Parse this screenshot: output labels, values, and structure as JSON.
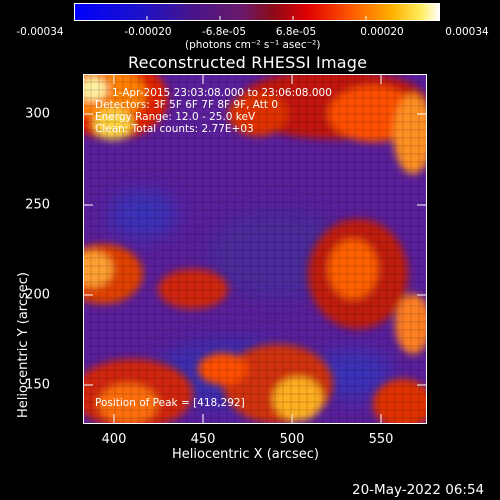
{
  "colorbar": {
    "ticks": [
      "-0.00034",
      "-0.00020",
      "-6.8e-05",
      "6.8e-05",
      "0.00020",
      "0.00034"
    ],
    "units": "(photons cm⁻² s⁻¹ asec⁻²)",
    "min": -0.00034,
    "max": 0.00034
  },
  "title": "Reconstructed RHESSI Image",
  "info": {
    "time": "1-Apr-2015 23:03:08.000 to 23:06:08.000",
    "detectors": "Detectors: 3F 5F 6F 7F 8F 9F, Att 0",
    "energy": "Energy Range: 12.0 - 25.0 keV",
    "clean": "Clean: Total counts: 2.77E+03",
    "peak": "Position of Peak = [418,292]"
  },
  "footer": "20-May-2022 06:54",
  "chart_data": {
    "type": "heatmap",
    "title": "Reconstructed RHESSI Image",
    "xlabel": "Heliocentric X (arcsec)",
    "ylabel": "Heliocentric Y (arcsec)",
    "xlim": [
      382,
      575
    ],
    "ylim": [
      128,
      322
    ],
    "x_ticks": [
      400,
      450,
      500,
      550
    ],
    "y_ticks": [
      150,
      200,
      250,
      300
    ],
    "colormap": "rainbow-hot (blue-purple-red-orange-yellow-white)",
    "peak_position": [
      418,
      292
    ]
  }
}
